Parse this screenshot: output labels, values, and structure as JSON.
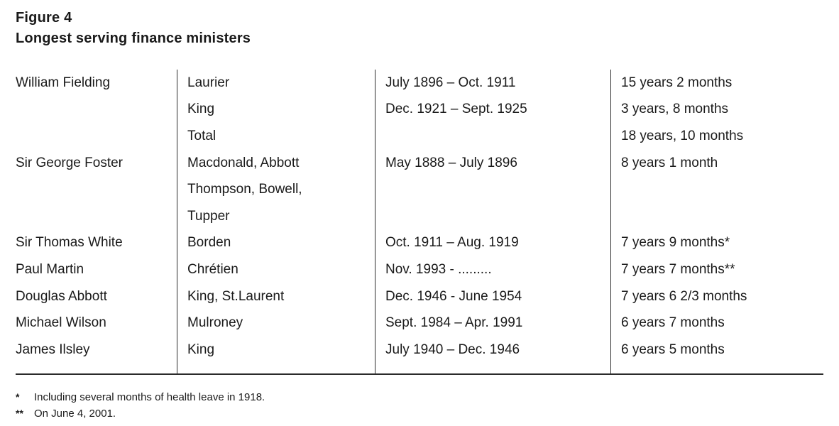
{
  "figure": {
    "label": "Figure 4",
    "title": "Longest serving finance ministers"
  },
  "table": {
    "rows": [
      [
        "William Fielding",
        "Laurier",
        "July 1896 – Oct. 1911",
        "15 years 2 months"
      ],
      [
        "",
        "King",
        "Dec. 1921 – Sept. 1925",
        "3 years, 8 months"
      ],
      [
        "",
        "Total",
        "",
        "18 years, 10 months"
      ],
      [
        "Sir George Foster",
        "Macdonald, Abbott",
        "May 1888 – July 1896",
        "8 years 1 month"
      ],
      [
        "",
        "Thompson, Bowell,",
        "",
        ""
      ],
      [
        "",
        "Tupper",
        "",
        ""
      ],
      [
        "Sir Thomas White",
        "Borden",
        "Oct. 1911 – Aug. 1919",
        "7 years 9 months*"
      ],
      [
        "Paul Martin",
        "Chrétien",
        "Nov. 1993 - .........",
        "7 years 7 months**"
      ],
      [
        "Douglas Abbott",
        "King, St.Laurent",
        "Dec. 1946 - June 1954",
        "7 years 6 2/3 months"
      ],
      [
        "Michael Wilson",
        "Mulroney",
        "Sept. 1984 – Apr. 1991",
        "6 years 7 months"
      ],
      [
        "James Ilsley",
        "King",
        "July 1940 – Dec. 1946",
        "6 years 5 months"
      ]
    ]
  },
  "footnotes": [
    {
      "marker": "*",
      "text": "Including several months of health leave in 1918."
    },
    {
      "marker": "**",
      "text": "On June 4, 2001."
    }
  ],
  "colors": {
    "text": "#1a1a1a",
    "rule": "#2b2b2b",
    "background": "#ffffff"
  }
}
